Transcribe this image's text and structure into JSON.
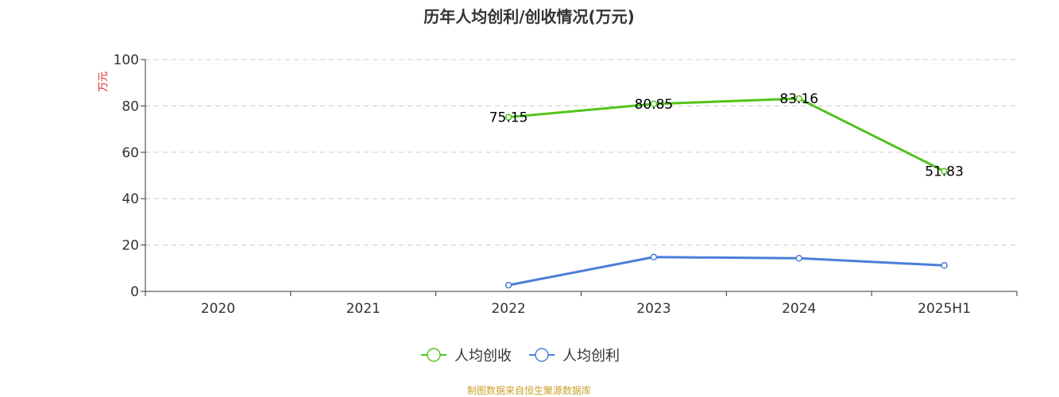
{
  "chart_data": {
    "type": "line",
    "title": "历年人均创利/创收情况(万元)",
    "ylabel": "万元",
    "categories": [
      "2020",
      "2021",
      "2022",
      "2023",
      "2024",
      "2025H1"
    ],
    "ylim": [
      0,
      100
    ],
    "yticks": [
      0,
      20,
      40,
      60,
      80,
      100
    ],
    "grid": true,
    "legend_position": "bottom",
    "series": [
      {
        "name": "人均创收",
        "color": "#52c41a",
        "values": [
          null,
          null,
          75.15,
          80.85,
          83.16,
          51.83
        ],
        "labels": [
          "",
          "",
          "75.15",
          "80.85",
          "83.16",
          "51.83"
        ]
      },
      {
        "name": "人均创利",
        "color": "#4a7fd9",
        "values": [
          null,
          null,
          2.7,
          14.8,
          14.3,
          11.2
        ],
        "labels": [
          "",
          "",
          "",
          "",
          "",
          ""
        ]
      }
    ]
  },
  "colors": {
    "ylabel": "#e02020",
    "source": "#c9a227",
    "axis": "#333333",
    "grid": "#cccccc"
  },
  "footer": {
    "source": "制图数据来自恒生聚源数据库"
  }
}
